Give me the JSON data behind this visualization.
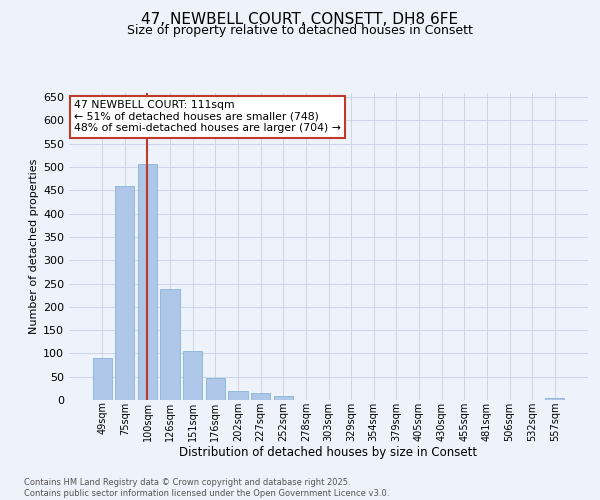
{
  "title": "47, NEWBELL COURT, CONSETT, DH8 6FE",
  "subtitle": "Size of property relative to detached houses in Consett",
  "xlabel": "Distribution of detached houses by size in Consett",
  "ylabel": "Number of detached properties",
  "categories": [
    "49sqm",
    "75sqm",
    "100sqm",
    "126sqm",
    "151sqm",
    "176sqm",
    "202sqm",
    "227sqm",
    "252sqm",
    "278sqm",
    "303sqm",
    "329sqm",
    "354sqm",
    "379sqm",
    "405sqm",
    "430sqm",
    "455sqm",
    "481sqm",
    "506sqm",
    "532sqm",
    "557sqm"
  ],
  "values": [
    91,
    460,
    507,
    238,
    105,
    47,
    19,
    14,
    8,
    1,
    1,
    0,
    0,
    0,
    1,
    0,
    0,
    1,
    0,
    1,
    4
  ],
  "bar_color": "#aec6e8",
  "bar_edge_color": "#8ab4d8",
  "grid_color": "#ccd6e8",
  "vline_color": "#c0392b",
  "annotation_text": "47 NEWBELL COURT: 111sqm\n← 51% of detached houses are smaller (748)\n48% of semi-detached houses are larger (704) →",
  "annotation_box_color": "white",
  "annotation_box_edgecolor": "#c0392b",
  "footer_text": "Contains HM Land Registry data © Crown copyright and database right 2025.\nContains public sector information licensed under the Open Government Licence v3.0.",
  "ylim": [
    0,
    660
  ],
  "yticks": [
    0,
    50,
    100,
    150,
    200,
    250,
    300,
    350,
    400,
    450,
    500,
    550,
    600,
    650
  ],
  "background_color": "#eef2fa",
  "plot_background_color": "#eef2fa"
}
